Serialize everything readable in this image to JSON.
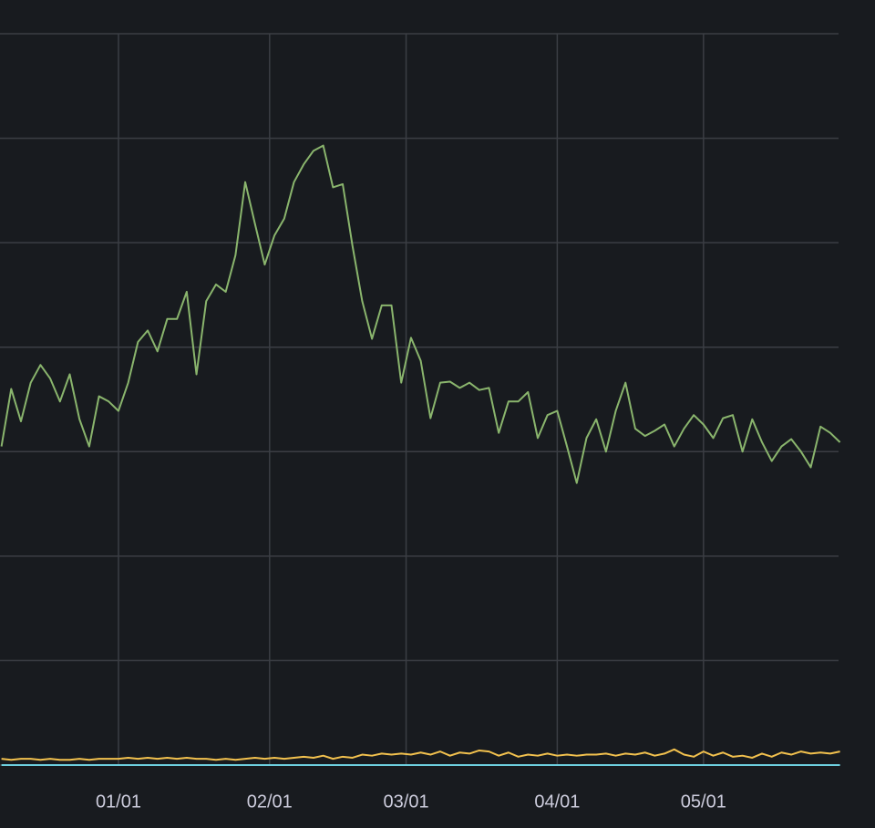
{
  "chart_data": {
    "type": "line",
    "x": [
      -24,
      -22,
      -20,
      -18,
      -16,
      -14,
      -12,
      -10,
      -8,
      -6,
      -4,
      -2,
      0,
      2,
      4,
      6,
      8,
      10,
      12,
      14,
      16,
      18,
      20,
      22,
      24,
      26,
      28,
      30,
      32,
      34,
      36,
      38,
      40,
      42,
      44,
      46,
      48,
      50,
      52,
      54,
      56,
      58,
      60,
      62,
      64,
      66,
      68,
      70,
      72,
      74,
      76,
      78,
      80,
      82,
      84,
      86,
      88,
      90,
      92,
      94,
      96,
      98,
      100,
      102,
      104,
      106,
      108,
      110,
      112,
      114,
      116,
      118,
      120,
      122,
      124,
      126,
      128,
      130,
      132,
      134,
      136,
      138,
      140,
      142,
      144,
      146,
      148
    ],
    "series": [
      {
        "color": "#8ab56d",
        "values": [
          3.05,
          3.6,
          3.29,
          3.66,
          3.83,
          3.7,
          3.48,
          3.74,
          3.31,
          3.05,
          3.53,
          3.48,
          3.39,
          3.66,
          4.05,
          4.16,
          3.96,
          4.27,
          4.27,
          4.53,
          3.74,
          4.44,
          4.6,
          4.53,
          4.88,
          5.58,
          5.18,
          4.79,
          5.07,
          5.23,
          5.58,
          5.75,
          5.88,
          5.93,
          5.53,
          5.56,
          4.97,
          4.44,
          4.08,
          4.4,
          4.4,
          3.66,
          4.09,
          3.87,
          3.32,
          3.66,
          3.67,
          3.61,
          3.66,
          3.59,
          3.61,
          3.18,
          3.48,
          3.48,
          3.57,
          3.13,
          3.35,
          3.39,
          3.05,
          2.7,
          3.13,
          3.31,
          3.0,
          3.39,
          3.66,
          3.22,
          3.15,
          3.2,
          3.26,
          3.05,
          3.22,
          3.35,
          3.26,
          3.13,
          3.32,
          3.35,
          3.0,
          3.31,
          3.09,
          2.91,
          3.05,
          3.12,
          3.0,
          2.85,
          3.24,
          3.18,
          3.09
        ]
      },
      {
        "color": "#f2c14e",
        "values": [
          0.06,
          0.05,
          0.06,
          0.06,
          0.05,
          0.06,
          0.05,
          0.05,
          0.06,
          0.05,
          0.06,
          0.06,
          0.06,
          0.07,
          0.06,
          0.07,
          0.06,
          0.07,
          0.06,
          0.07,
          0.06,
          0.06,
          0.05,
          0.06,
          0.05,
          0.06,
          0.07,
          0.06,
          0.07,
          0.06,
          0.07,
          0.08,
          0.07,
          0.09,
          0.06,
          0.08,
          0.07,
          0.1,
          0.09,
          0.11,
          0.1,
          0.11,
          0.1,
          0.12,
          0.1,
          0.13,
          0.09,
          0.12,
          0.11,
          0.14,
          0.13,
          0.09,
          0.12,
          0.08,
          0.1,
          0.09,
          0.11,
          0.09,
          0.1,
          0.09,
          0.1,
          0.1,
          0.11,
          0.09,
          0.11,
          0.1,
          0.12,
          0.09,
          0.11,
          0.15,
          0.1,
          0.08,
          0.13,
          0.09,
          0.12,
          0.08,
          0.09,
          0.07,
          0.11,
          0.08,
          0.12,
          0.1,
          0.13,
          0.11,
          0.12,
          0.11,
          0.13
        ]
      },
      {
        "color": "#6ed0e0",
        "values": [
          0,
          0,
          0,
          0,
          0,
          0,
          0,
          0,
          0,
          0,
          0,
          0,
          0,
          0,
          0,
          0,
          0,
          0,
          0,
          0,
          0,
          0,
          0,
          0,
          0,
          0,
          0,
          0,
          0,
          0,
          0,
          0,
          0,
          0,
          0,
          0,
          0,
          0,
          0,
          0,
          0,
          0,
          0,
          0,
          0,
          0,
          0,
          0,
          0,
          0,
          0,
          0,
          0,
          0,
          0,
          0,
          0,
          0,
          0,
          0,
          0,
          0,
          0,
          0,
          0,
          0,
          0,
          0,
          0,
          0,
          0,
          0,
          0,
          0,
          0,
          0,
          0,
          0,
          0,
          0,
          0,
          0,
          0,
          0,
          0,
          0,
          0
        ]
      }
    ],
    "xlim": [
      -24.3,
      147.7
    ],
    "xticks": [
      {
        "value": 0,
        "label": "01/01"
      },
      {
        "value": 31,
        "label": "02/01"
      },
      {
        "value": 59,
        "label": "03/01"
      },
      {
        "value": 90,
        "label": "04/01"
      },
      {
        "value": 120,
        "label": "05/01"
      }
    ],
    "ylim": [
      0,
      7
    ],
    "yticks": [
      0,
      1,
      2,
      3,
      4,
      5,
      6,
      7
    ],
    "grid": true
  }
}
